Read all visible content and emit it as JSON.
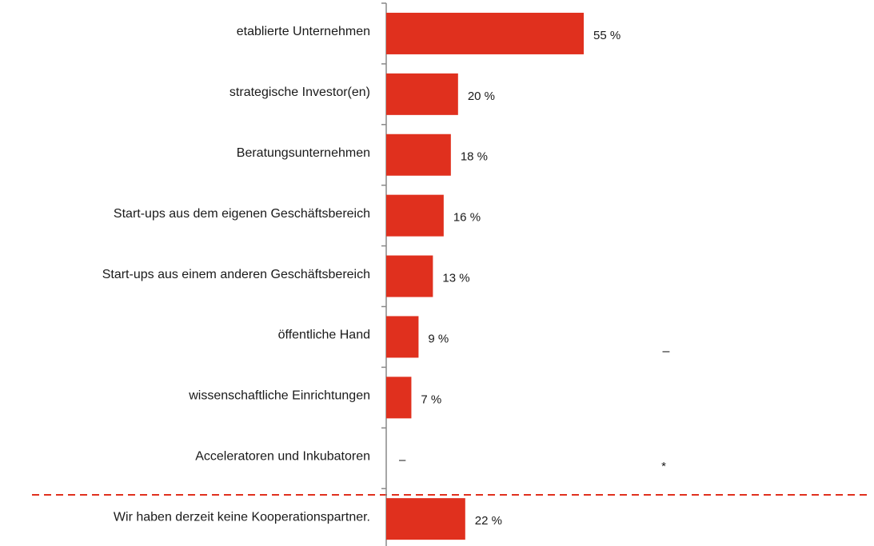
{
  "chart_data": {
    "type": "bar",
    "orientation": "horizontal",
    "categories": [
      "etablierte Unternehmen",
      "strategische Investor(en)",
      "Beratungsunternehmen",
      "Start-ups aus dem eigenen Geschäftsbereich",
      "Start-ups aus einem anderen Geschäftsbereich",
      "öffentliche Hand",
      "wissenschaftliche Einrichtungen",
      "Acceleratoren und Inkubatoren",
      "Wir haben derzeit keine Kooperationspartner."
    ],
    "values": [
      55,
      20,
      18,
      16,
      13,
      9,
      7,
      null,
      22
    ],
    "value_labels": [
      "55 %",
      "20 %",
      "18 %",
      "16 %",
      "13 %",
      "9 %",
      "7 %",
      "–",
      "22 %"
    ],
    "color": "#e0301e",
    "annotations": [
      "–",
      "*"
    ]
  }
}
